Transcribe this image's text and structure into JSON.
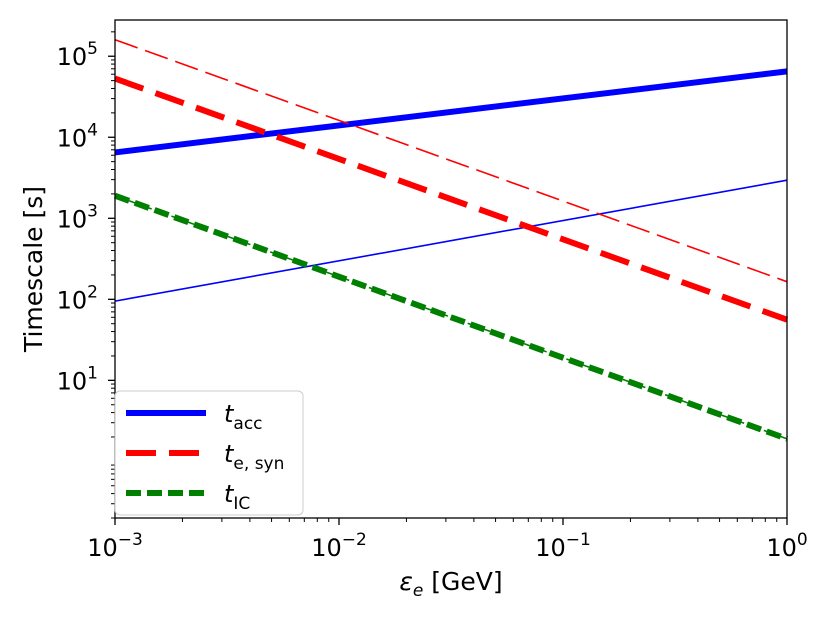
{
  "chart_data": {
    "type": "line",
    "xscale": "log",
    "yscale": "log",
    "xlim": [
      0.001,
      1
    ],
    "ylim": [
      0.2,
      280000
    ],
    "xlabel": {
      "main": "ε",
      "sub": "e",
      "rest": " [GeV]"
    },
    "ylabel": "Timescale [s]",
    "xticks": [
      {
        "value": 0.001,
        "base": "10",
        "exp": "−3"
      },
      {
        "value": 0.01,
        "base": "10",
        "exp": "−2"
      },
      {
        "value": 0.1,
        "base": "10",
        "exp": "−1"
      },
      {
        "value": 1,
        "base": "10",
        "exp": "0"
      }
    ],
    "yticks": [
      {
        "value": 10,
        "base": "10",
        "exp": "1"
      },
      {
        "value": 100,
        "base": "10",
        "exp": "2"
      },
      {
        "value": 1000,
        "base": "10",
        "exp": "3"
      },
      {
        "value": 10000,
        "base": "10",
        "exp": "4"
      },
      {
        "value": 100000,
        "base": "10",
        "exp": "5"
      }
    ],
    "series": [
      {
        "name": "t_acc",
        "legend": true,
        "color": "#0000ff",
        "style": "solid",
        "weight": "thick",
        "x": [
          0.001,
          1
        ],
        "y": [
          6500,
          65000
        ]
      },
      {
        "name": "t_acc (thin)",
        "legend": false,
        "color": "#0000ff",
        "style": "solid",
        "weight": "thin",
        "x": [
          0.001,
          1
        ],
        "y": [
          95,
          2950
        ]
      },
      {
        "name": "t_e,syn",
        "legend": true,
        "color": "#ff0000",
        "style": "dashed",
        "weight": "thick",
        "x": [
          0.001,
          1
        ],
        "y": [
          53000,
          56
        ]
      },
      {
        "name": "t_e,syn (thin)",
        "legend": false,
        "color": "#ff0000",
        "style": "dashed",
        "weight": "thin",
        "x": [
          0.001,
          1
        ],
        "y": [
          160000,
          165
        ]
      },
      {
        "name": "t_IC",
        "legend": true,
        "color": "#008000",
        "style": "dotted-dash",
        "weight": "thick",
        "x": [
          0.001,
          1
        ],
        "y": [
          1900,
          1.9
        ]
      },
      {
        "name": "t_IC (thin)",
        "legend": false,
        "color": "#008000",
        "style": "dotted-dash",
        "weight": "thin",
        "x": [
          0.001,
          1
        ],
        "y": [
          1900,
          1.9
        ]
      }
    ],
    "legend": {
      "placement": "lower-left",
      "entries": [
        {
          "main": "t",
          "sub": "acc",
          "color": "#0000ff",
          "style": "solid"
        },
        {
          "main": "t",
          "sub": "e, syn",
          "color": "#ff0000",
          "style": "dashed"
        },
        {
          "main": "t",
          "sub": "IC",
          "color": "#008000",
          "style": "dotted-dash"
        }
      ]
    }
  }
}
